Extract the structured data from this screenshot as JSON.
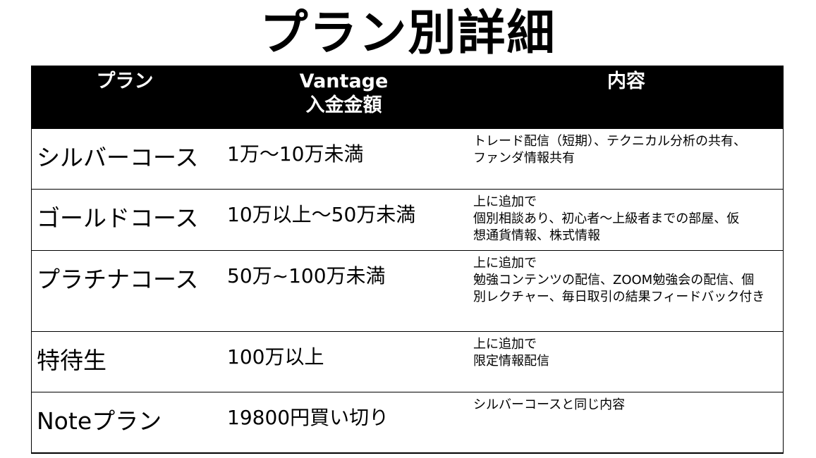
{
  "title": "プラン別詳細",
  "headers": {
    "plan": "プラン",
    "amount_line1": "Vantage",
    "amount_line2": "入金金額",
    "content": "内容"
  },
  "rows": [
    {
      "plan": "シルバーコース",
      "amount": "1万～10万未満",
      "content": [
        "トレード配信（短期）、テクニカル分析の共有、",
        "ファンダ情報共有"
      ]
    },
    {
      "plan": "ゴールドコース",
      "amount": "10万以上～50万未満",
      "content": [
        "上に追加で",
        "個別相談あり、初心者～上級者までの部屋、仮",
        "想通貨情報、株式情報"
      ]
    },
    {
      "plan": "プラチナコース",
      "amount": "50万~100万未満",
      "content": [
        "上に追加で",
        "勉強コンテンツの配信、ZOOM勉強会の配信、個",
        "別レクチャー、毎日取引の結果フィードバック付き"
      ]
    },
    {
      "plan": "特待生",
      "amount": "100万以上",
      "content": [
        "上に追加で",
        "限定情報配信"
      ]
    },
    {
      "plan": "Noteプラン",
      "amount": "19800円買い切り",
      "content": [
        "シルバーコースと同じ内容"
      ]
    }
  ]
}
